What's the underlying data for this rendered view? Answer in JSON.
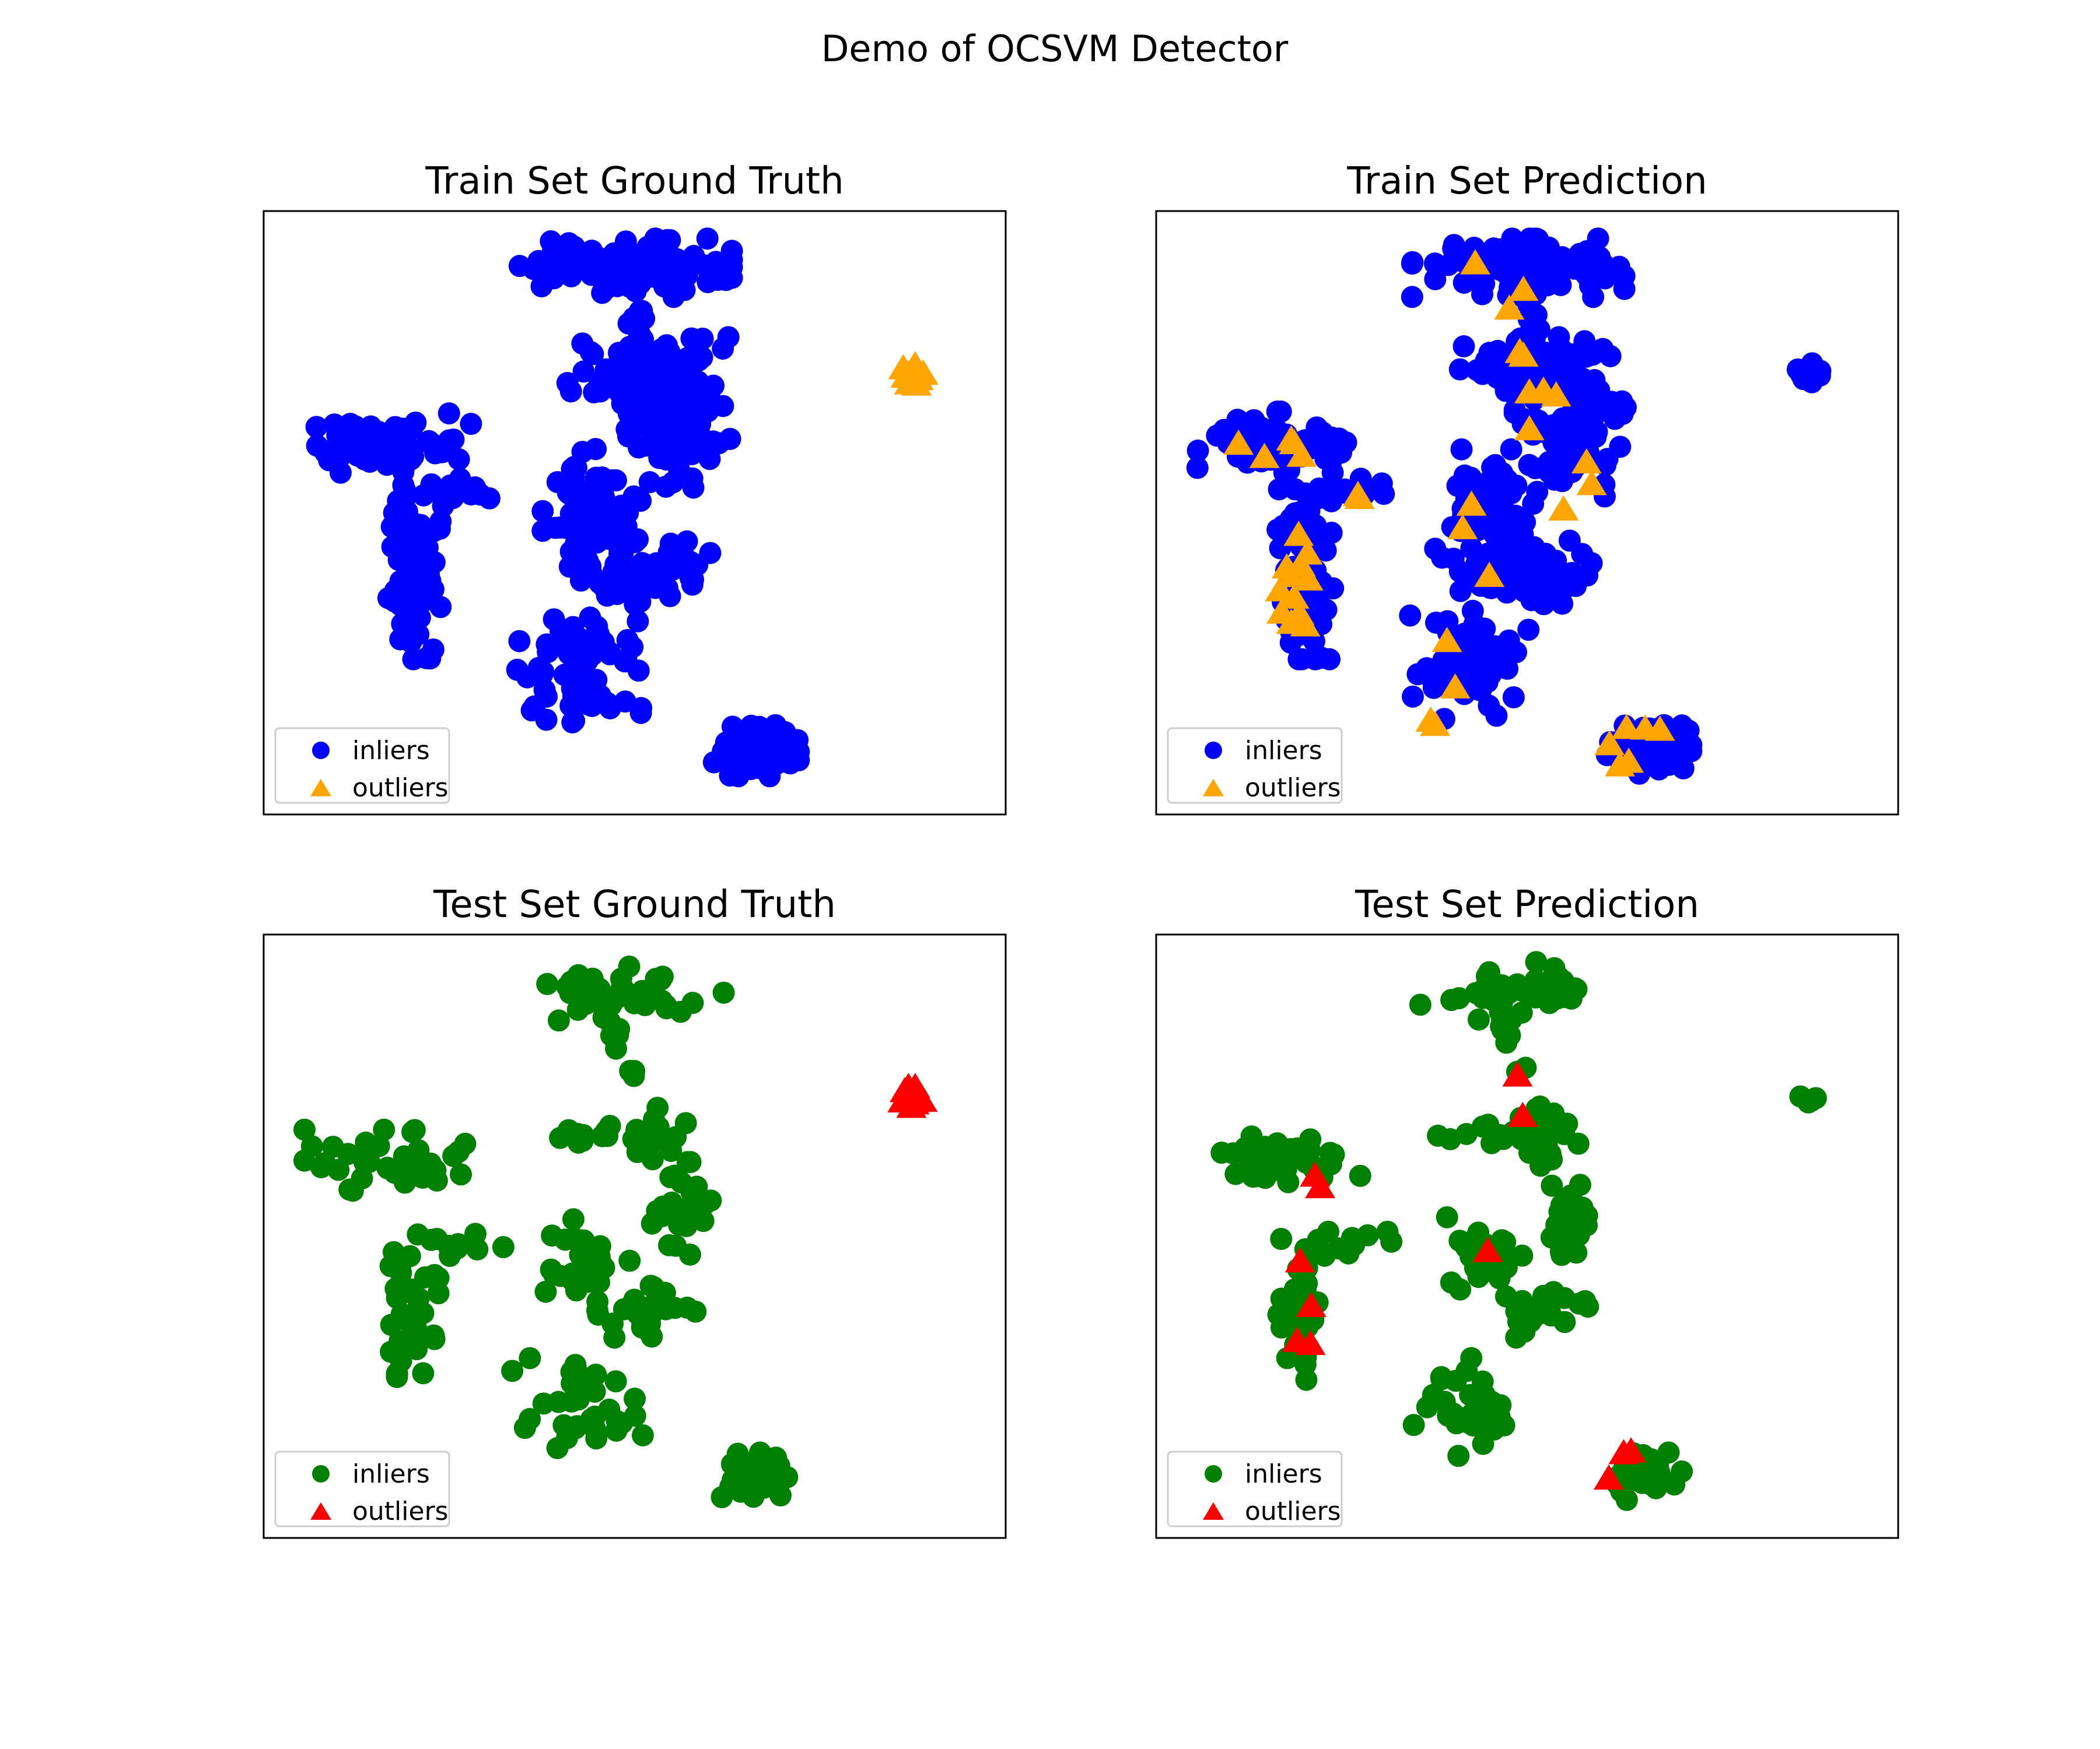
{
  "figure": {
    "title": "Demo of OCSVM Detector"
  },
  "chart_data": [
    {
      "type": "scatter",
      "title": "Train Set Ground Truth",
      "xlabel": "",
      "ylabel": "",
      "xlim": [
        0,
        100
      ],
      "ylim": [
        0,
        100
      ],
      "grid": false,
      "axis_ticks": false,
      "legend_position": "lower-left",
      "series": [
        {
          "name": "inliers",
          "marker": "circle",
          "color": "#0000ff",
          "clusters": [
            {
              "cx": 48.8,
              "cy": 90.6,
              "sx": 6.5,
              "sy": 2.2,
              "n": 120
            },
            {
              "cx": 50.1,
              "cy": 82.7,
              "sx": 0.7,
              "sy": 1.8,
              "n": 12
            },
            {
              "cx": 49.3,
              "cy": 73.6,
              "sx": 3.8,
              "sy": 2.4,
              "n": 55
            },
            {
              "cx": 55.8,
              "cy": 65.9,
              "sx": 3.4,
              "sy": 6.0,
              "n": 110
            },
            {
              "cx": 44.2,
              "cy": 50.0,
              "sx": 3.0,
              "sy": 4.8,
              "n": 75
            },
            {
              "cx": 50.5,
              "cy": 40.1,
              "sx": 4.4,
              "sy": 2.4,
              "n": 60
            },
            {
              "cx": 42.3,
              "cy": 24.5,
              "sx": 3.9,
              "sy": 4.2,
              "n": 65
            },
            {
              "cx": 16.5,
              "cy": 61.7,
              "sx": 5.2,
              "sy": 2.3,
              "n": 80
            },
            {
              "cx": 25.4,
              "cy": 53.0,
              "sx": 2.4,
              "sy": 1.2,
              "n": 18
            },
            {
              "cx": 20.1,
              "cy": 39.8,
              "sx": 1.7,
              "sy": 6.4,
              "n": 90
            },
            {
              "cx": 19.2,
              "cy": 50.5,
              "sx": 0.5,
              "sy": 2.0,
              "n": 8
            },
            {
              "cx": 66.4,
              "cy": 10.4,
              "sx": 2.6,
              "sy": 2.0,
              "n": 90
            }
          ]
        },
        {
          "name": "outliers",
          "marker": "triangle",
          "color": "#ffa500",
          "points": [
            [
              86.5,
              72.5
            ],
            [
              87.5,
              73.6
            ],
            [
              88.3,
              72.1
            ],
            [
              87.0,
              71.4
            ],
            [
              88.9,
              73.0
            ],
            [
              86.2,
              73.9
            ],
            [
              87.8,
              74.4
            ],
            [
              86.9,
              72.9
            ],
            [
              88.0,
              71.2
            ],
            [
              87.4,
              72.2
            ]
          ]
        }
      ]
    },
    {
      "type": "scatter",
      "title": "Train Set Prediction",
      "xlabel": "",
      "ylabel": "",
      "xlim": [
        0,
        100
      ],
      "ylim": [
        0,
        100
      ],
      "grid": false,
      "axis_ticks": false,
      "legend_position": "lower-left",
      "series": [
        {
          "name": "inliers",
          "marker": "circle",
          "color": "#0000ff",
          "clusters": [
            {
              "cx": 48.8,
              "cy": 90.6,
              "sx": 6.5,
              "sy": 2.2,
              "n": 120
            },
            {
              "cx": 50.1,
              "cy": 82.7,
              "sx": 0.7,
              "sy": 1.8,
              "n": 12
            },
            {
              "cx": 49.3,
              "cy": 73.6,
              "sx": 3.8,
              "sy": 2.4,
              "n": 55
            },
            {
              "cx": 55.8,
              "cy": 65.9,
              "sx": 3.4,
              "sy": 6.0,
              "n": 110
            },
            {
              "cx": 44.2,
              "cy": 50.0,
              "sx": 3.0,
              "sy": 4.8,
              "n": 75
            },
            {
              "cx": 50.5,
              "cy": 40.1,
              "sx": 4.4,
              "sy": 2.4,
              "n": 60
            },
            {
              "cx": 42.3,
              "cy": 24.5,
              "sx": 3.9,
              "sy": 4.2,
              "n": 65
            },
            {
              "cx": 16.5,
              "cy": 61.7,
              "sx": 5.2,
              "sy": 2.3,
              "n": 80
            },
            {
              "cx": 25.4,
              "cy": 53.0,
              "sx": 2.4,
              "sy": 1.2,
              "n": 18
            },
            {
              "cx": 20.1,
              "cy": 39.8,
              "sx": 1.7,
              "sy": 6.4,
              "n": 90
            },
            {
              "cx": 19.2,
              "cy": 50.5,
              "sx": 0.5,
              "sy": 2.0,
              "n": 8
            },
            {
              "cx": 66.4,
              "cy": 10.4,
              "sx": 2.6,
              "sy": 2.0,
              "n": 90
            },
            {
              "cx": 87.8,
              "cy": 73.0,
              "sx": 0.9,
              "sy": 0.8,
              "n": 14
            }
          ]
        },
        {
          "name": "outliers",
          "marker": "triangle",
          "color": "#ffa500",
          "points": [
            [
              43.0,
              91.3
            ],
            [
              49.5,
              86.9
            ],
            [
              47.6,
              83.8
            ],
            [
              49.0,
              76.6
            ],
            [
              49.5,
              76.0
            ],
            [
              50.3,
              69.9
            ],
            [
              52.2,
              70.2
            ],
            [
              53.9,
              69.4
            ],
            [
              50.3,
              63.8
            ],
            [
              58.0,
              58.3
            ],
            [
              58.7,
              54.7
            ],
            [
              54.9,
              50.5
            ],
            [
              42.5,
              51.3
            ],
            [
              41.3,
              47.4
            ],
            [
              44.9,
              39.5
            ],
            [
              39.2,
              28.7
            ],
            [
              40.3,
              21.0
            ],
            [
              37.0,
              15.5
            ],
            [
              37.6,
              14.8
            ],
            [
              11.1,
              61.4
            ],
            [
              14.6,
              59.2
            ],
            [
              18.2,
              62.1
            ],
            [
              18.6,
              61.5
            ],
            [
              19.6,
              59.4
            ],
            [
              27.4,
              52.4
            ],
            [
              27.2,
              52.9
            ],
            [
              19.2,
              46.3
            ],
            [
              20.4,
              43.2
            ],
            [
              19.5,
              41.2
            ],
            [
              18.3,
              39.5
            ],
            [
              17.6,
              40.9
            ],
            [
              16.7,
              37.1
            ],
            [
              18.6,
              35.9
            ],
            [
              20.5,
              38.9
            ],
            [
              16.9,
              33.4
            ],
            [
              20.1,
              31.3
            ],
            [
              19.3,
              33.2
            ],
            [
              18.2,
              31.7
            ],
            [
              63.4,
              14.3
            ],
            [
              65.9,
              14.2
            ],
            [
              67.9,
              14.0
            ],
            [
              61.1,
              11.6
            ],
            [
              62.5,
              8.1
            ],
            [
              63.7,
              8.7
            ]
          ]
        }
      ]
    },
    {
      "type": "scatter",
      "title": "Test Set Ground Truth",
      "xlabel": "",
      "ylabel": "",
      "xlim": [
        0,
        100
      ],
      "ylim": [
        0,
        100
      ],
      "grid": false,
      "axis_ticks": false,
      "legend_position": "lower-left",
      "series": [
        {
          "name": "inliers",
          "marker": "circle",
          "color": "#008000",
          "clusters": [
            {
              "cx": 48.8,
              "cy": 90.6,
              "sx": 6.0,
              "sy": 2.2,
              "n": 45
            },
            {
              "cx": 47.2,
              "cy": 83.5,
              "sx": 0.6,
              "sy": 1.8,
              "n": 5
            },
            {
              "cx": 49.6,
              "cy": 77.2,
              "sx": 0.5,
              "sy": 0.5,
              "n": 3
            },
            {
              "cx": 45.3,
              "cy": 66.5,
              "sx": 3.5,
              "sy": 1.0,
              "n": 14
            },
            {
              "cx": 52.5,
              "cy": 66.0,
              "sx": 2.0,
              "sy": 2.5,
              "n": 16
            },
            {
              "cx": 56.3,
              "cy": 54.6,
              "sx": 1.8,
              "sy": 3.5,
              "n": 28
            },
            {
              "cx": 43.6,
              "cy": 47.4,
              "sx": 2.6,
              "sy": 3.0,
              "n": 28
            },
            {
              "cx": 50.5,
              "cy": 37.6,
              "sx": 3.5,
              "sy": 2.0,
              "n": 25
            },
            {
              "cx": 42.3,
              "cy": 21.0,
              "sx": 4.0,
              "sy": 4.0,
              "n": 34
            },
            {
              "cx": 16.5,
              "cy": 62.6,
              "sx": 5.0,
              "sy": 2.3,
              "n": 38
            },
            {
              "cx": 26.9,
              "cy": 49.3,
              "sx": 3.0,
              "sy": 1.5,
              "n": 10
            },
            {
              "cx": 19.6,
              "cy": 38.2,
              "sx": 1.8,
              "sy": 5.5,
              "n": 40
            },
            {
              "cx": 66.0,
              "cy": 10.2,
              "sx": 2.2,
              "sy": 1.8,
              "n": 38
            }
          ]
        },
        {
          "name": "outliers",
          "marker": "triangle",
          "color": "#ff0000",
          "points": [
            [
              86.9,
              74.7
            ],
            [
              87.8,
              74.7
            ],
            [
              86.1,
              72.3
            ],
            [
              88.8,
              72.4
            ],
            [
              87.3,
              71.4
            ],
            [
              87.0,
              73.6
            ],
            [
              88.0,
              73.2
            ],
            [
              86.4,
              74.0
            ],
            [
              87.7,
              72.0
            ]
          ]
        }
      ]
    },
    {
      "type": "scatter",
      "title": "Test Set Prediction",
      "xlabel": "",
      "ylabel": "",
      "xlim": [
        0,
        100
      ],
      "ylim": [
        0,
        100
      ],
      "grid": false,
      "axis_ticks": false,
      "legend_position": "lower-left",
      "series": [
        {
          "name": "inliers",
          "marker": "circle",
          "color": "#008000",
          "clusters": [
            {
              "cx": 48.8,
              "cy": 90.6,
              "sx": 6.0,
              "sy": 2.2,
              "n": 45
            },
            {
              "cx": 47.2,
              "cy": 83.5,
              "sx": 0.6,
              "sy": 1.8,
              "n": 5
            },
            {
              "cx": 49.6,
              "cy": 77.2,
              "sx": 0.5,
              "sy": 0.5,
              "n": 3
            },
            {
              "cx": 45.3,
              "cy": 66.5,
              "sx": 3.5,
              "sy": 1.0,
              "n": 14
            },
            {
              "cx": 52.5,
              "cy": 66.0,
              "sx": 2.0,
              "sy": 2.5,
              "n": 16
            },
            {
              "cx": 56.3,
              "cy": 54.6,
              "sx": 1.8,
              "sy": 3.5,
              "n": 28
            },
            {
              "cx": 43.6,
              "cy": 47.4,
              "sx": 2.6,
              "sy": 3.0,
              "n": 28
            },
            {
              "cx": 50.5,
              "cy": 37.6,
              "sx": 3.5,
              "sy": 2.0,
              "n": 25
            },
            {
              "cx": 42.3,
              "cy": 21.0,
              "sx": 4.0,
              "sy": 4.0,
              "n": 34
            },
            {
              "cx": 16.5,
              "cy": 62.6,
              "sx": 5.0,
              "sy": 2.3,
              "n": 38
            },
            {
              "cx": 26.9,
              "cy": 49.3,
              "sx": 3.0,
              "sy": 1.5,
              "n": 10
            },
            {
              "cx": 19.6,
              "cy": 38.2,
              "sx": 1.8,
              "sy": 5.5,
              "n": 40
            },
            {
              "cx": 66.0,
              "cy": 10.2,
              "sx": 2.2,
              "sy": 1.8,
              "n": 38
            },
            {
              "cx": 87.9,
              "cy": 73.0,
              "sx": 0.6,
              "sy": 1.0,
              "n": 5
            }
          ]
        },
        {
          "name": "outliers",
          "marker": "triangle",
          "color": "#ff0000",
          "points": [
            [
              48.7,
              76.6
            ],
            [
              49.4,
              69.9
            ],
            [
              21.4,
              60.0
            ],
            [
              22.1,
              58.1
            ],
            [
              19.4,
              45.8
            ],
            [
              20.9,
              38.4
            ],
            [
              19.0,
              32.6
            ],
            [
              20.8,
              32.1
            ],
            [
              44.7,
              47.5
            ],
            [
              63.0,
              14.0
            ],
            [
              64.0,
              14.3
            ],
            [
              61.0,
              9.8
            ]
          ]
        }
      ]
    }
  ]
}
